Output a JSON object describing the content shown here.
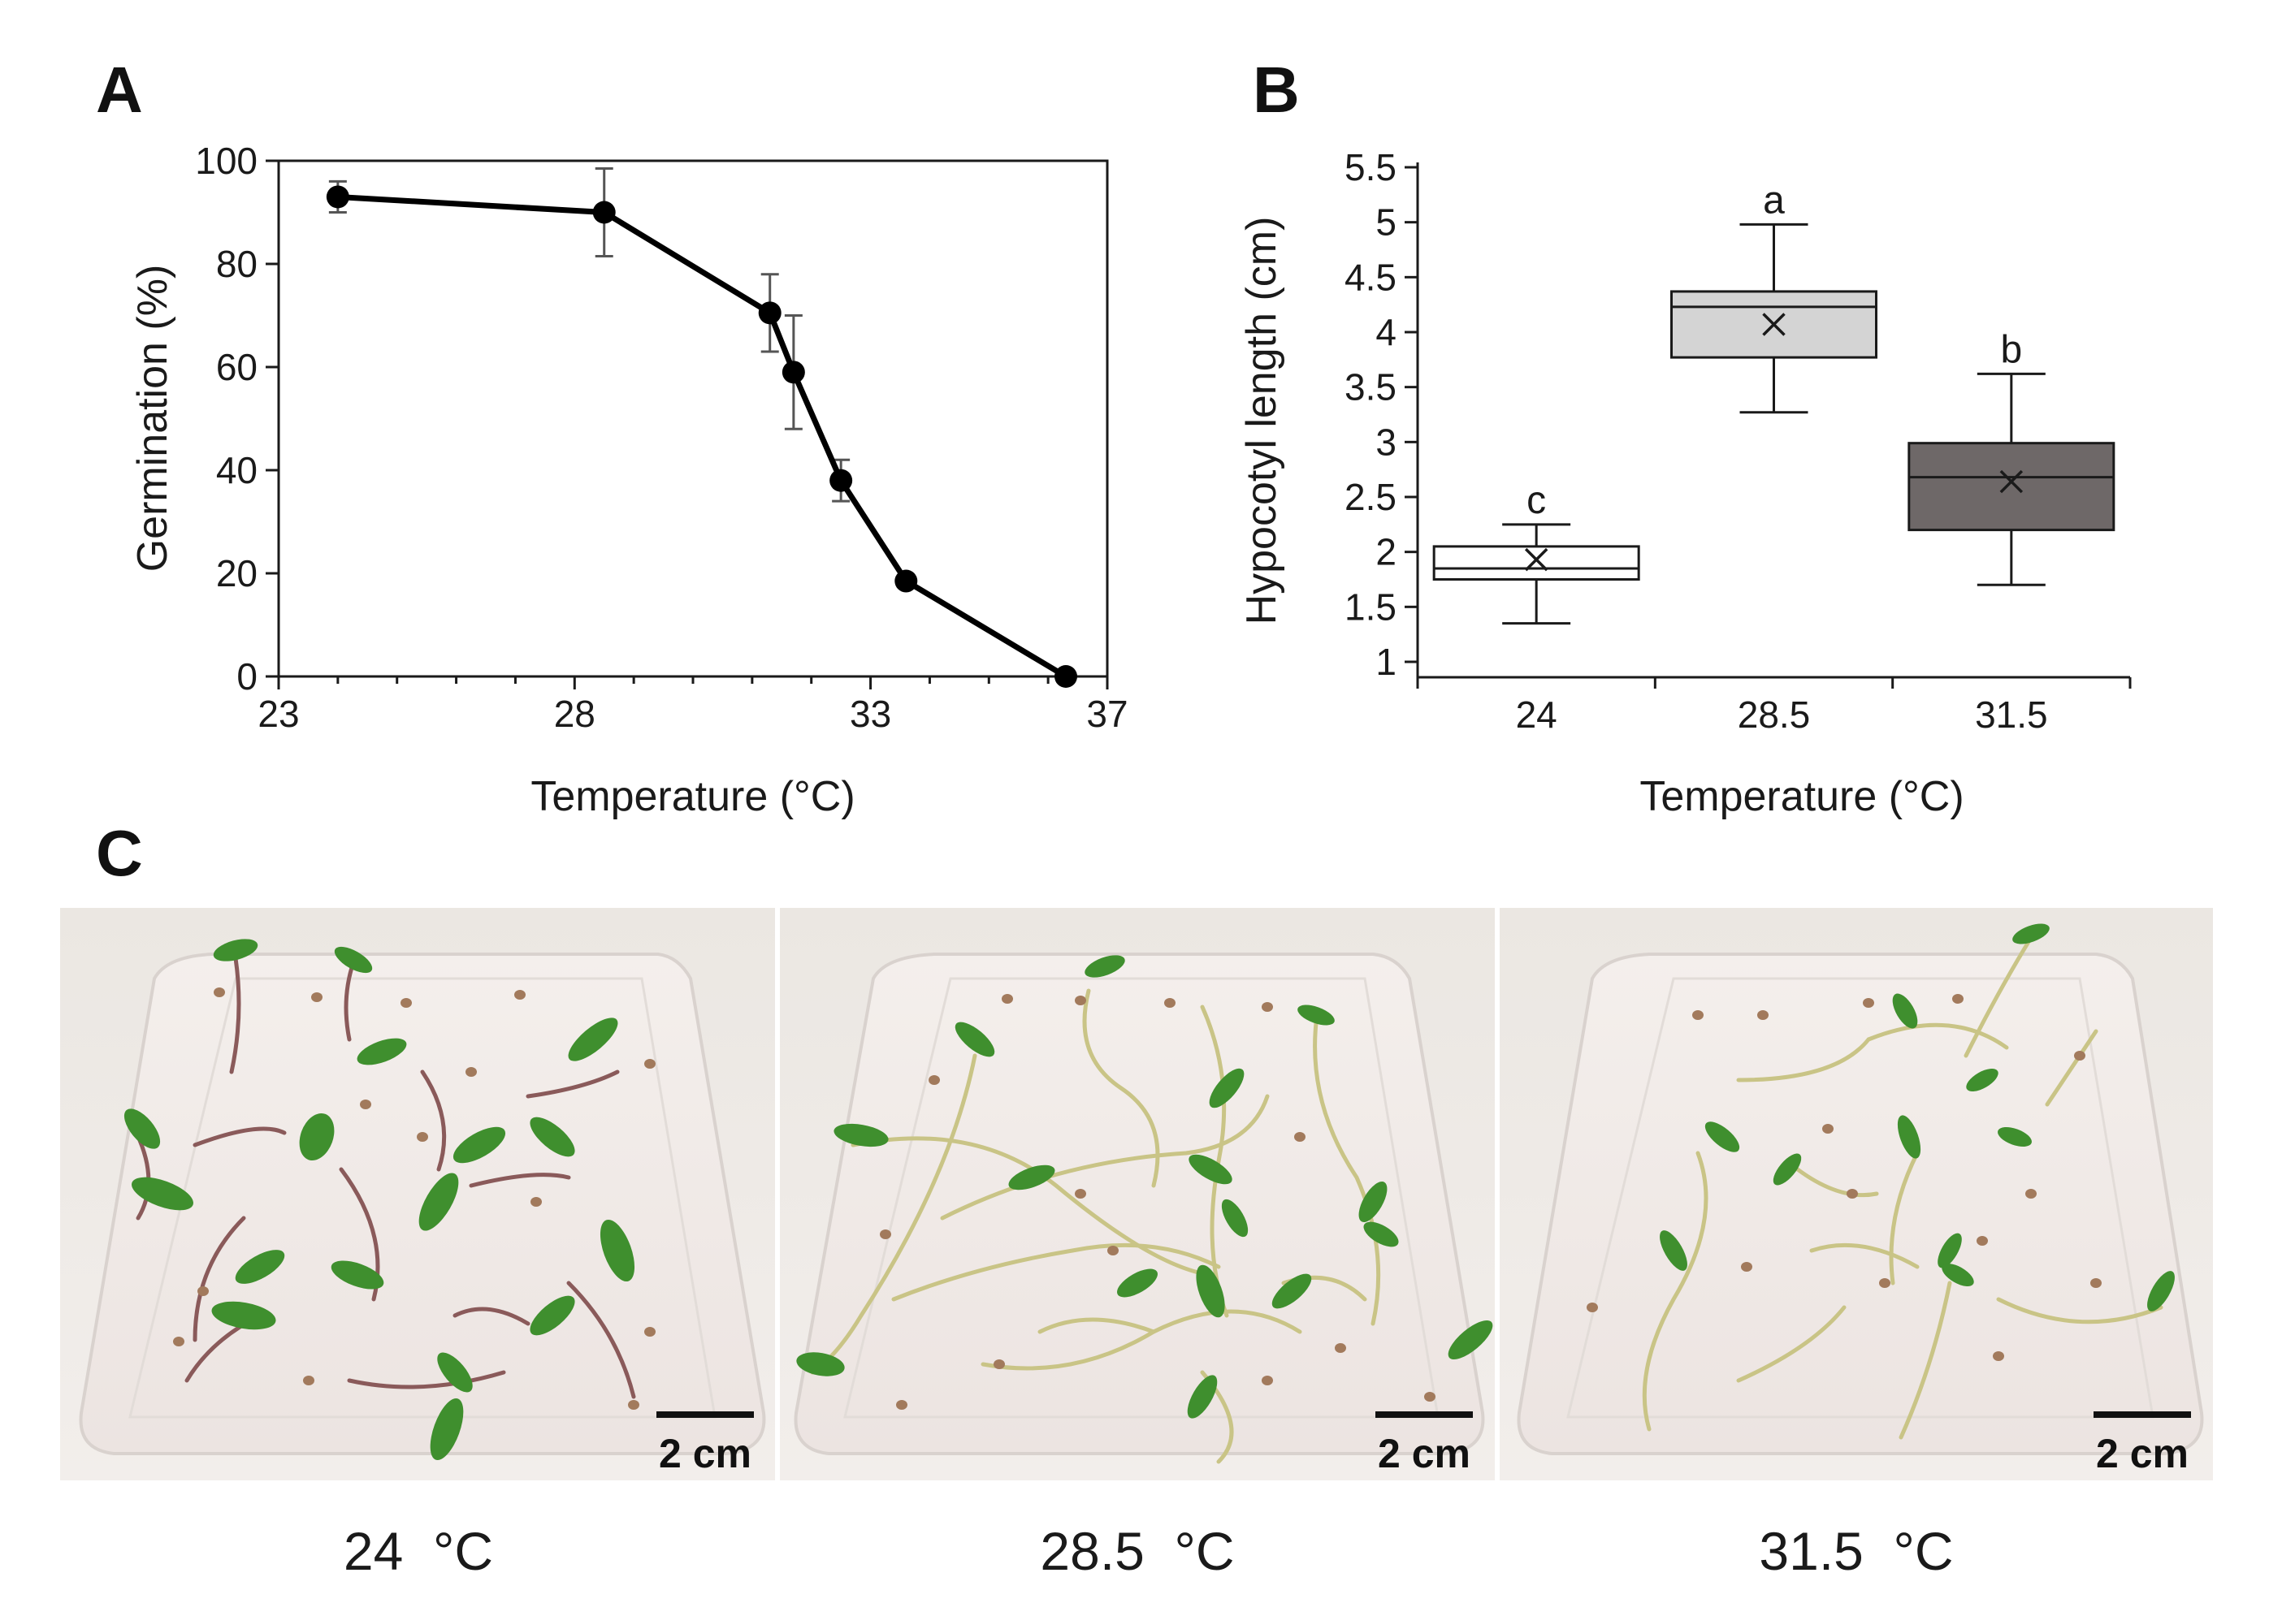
{
  "panels": {
    "a_label": "A",
    "b_label": "B",
    "c_label": "C"
  },
  "chart_data": [
    {
      "type": "line",
      "panel": "A",
      "title": "",
      "xlabel": "Temperature (°C)",
      "ylabel": "Germination (%)",
      "xlim": [
        23,
        37
      ],
      "ylim": [
        0,
        100
      ],
      "x_ticks": [
        23,
        28,
        33,
        37
      ],
      "y_ticks": [
        0,
        20,
        40,
        60,
        80,
        100
      ],
      "grid": false,
      "series": [
        {
          "name": "Germination",
          "x": [
            24,
            28.5,
            31.3,
            31.7,
            32.5,
            33.6,
            36.3
          ],
          "y": [
            93,
            90,
            70.5,
            59,
            38,
            18.5,
            0
          ],
          "err": [
            3,
            8.5,
            7.5,
            11,
            4,
            1,
            0
          ]
        }
      ]
    },
    {
      "type": "box",
      "panel": "B",
      "title": "",
      "xlabel": "Temperature (°C)",
      "ylabel": "Hypocotyl length (cm)",
      "ylim": [
        1,
        5.5
      ],
      "y_ticks": [
        1,
        1.5,
        2,
        2.5,
        3,
        3.5,
        4,
        4.5,
        5,
        5.5
      ],
      "categories": [
        "24",
        "28.5",
        "31.5"
      ],
      "boxes": [
        {
          "category": "24",
          "min": 1.35,
          "q1": 1.75,
          "median": 1.85,
          "q3": 2.05,
          "max": 2.25,
          "mean": 1.93,
          "sig": "c",
          "color": "#ffffff"
        },
        {
          "category": "28.5",
          "min": 3.27,
          "q1": 3.77,
          "median": 4.23,
          "q3": 4.37,
          "max": 4.98,
          "mean": 4.07,
          "sig": "a",
          "color": "#d4d4d4"
        },
        {
          "category": "31.5",
          "min": 1.7,
          "q1": 2.2,
          "median": 2.68,
          "q3": 2.99,
          "max": 3.62,
          "mean": 2.64,
          "sig": "b",
          "color": "#6e6868"
        }
      ]
    }
  ],
  "photos": [
    {
      "caption": "24  °C",
      "scale_label": "2 cm"
    },
    {
      "caption": "28.5  °C",
      "scale_label": "2 cm"
    },
    {
      "caption": "31.5  °C",
      "scale_label": "2 cm"
    }
  ],
  "colors": {
    "line": "#000000",
    "error_bar": "#555555",
    "leaf": "#3f8f2e",
    "stem_24": "#8a5a5a",
    "stem_warm": "#c9c486",
    "seed": "#a27a5c",
    "tray": "#f0ecea",
    "background_photo": "#ece8e4"
  }
}
